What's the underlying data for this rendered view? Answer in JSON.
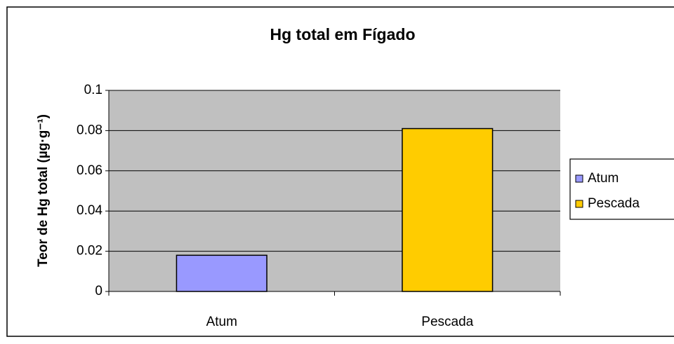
{
  "chart_data": {
    "type": "bar",
    "title": "Hg total em Fígado",
    "ylabel": "Teor de Hg total (µg·g⁻¹)",
    "categories": [
      "Atum",
      "Pescada"
    ],
    "values": [
      0.018,
      0.081
    ],
    "colors": [
      "#9999ff",
      "#ffcc00"
    ],
    "ylim": [
      0,
      0.1
    ],
    "yticks": [
      0,
      0.02,
      0.04,
      0.06,
      0.08,
      0.1
    ],
    "grid": true,
    "legend": "right"
  }
}
